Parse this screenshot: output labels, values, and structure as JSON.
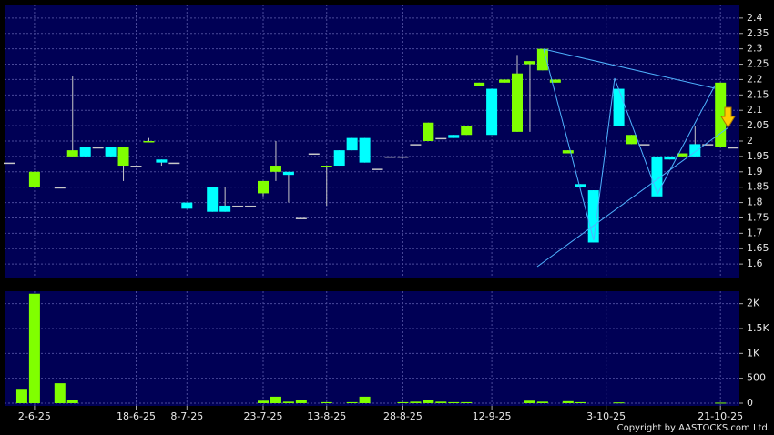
{
  "chart_data": [
    {
      "type": "candlestick",
      "up_color": "#00ffff",
      "down_color": "#80ff00",
      "open": [
        1.93,
        null,
        1.9,
        null,
        1.85,
        1.97,
        1.95,
        1.98,
        1.95,
        1.98,
        1.92,
        2.0,
        1.93,
        1.93,
        1.78,
        null,
        1.77,
        1.77,
        1.79,
        1.79,
        1.87,
        1.92,
        1.89,
        1.75,
        1.96,
        1.92,
        1.92,
        1.97,
        1.93,
        1.91,
        1.95,
        1.95,
        1.99,
        2.06,
        2.01,
        2.01,
        2.05,
        2.19,
        2.02,
        2.2,
        2.22,
        2.26,
        2.3,
        2.2,
        1.97,
        1.85,
        1.67,
        null,
        2.05,
        2.02,
        1.99,
        1.82,
        1.94,
        1.96,
        1.95,
        1.99,
        2.19,
        1.98
      ],
      "high": [
        1.93,
        null,
        1.9,
        null,
        1.85,
        2.21,
        1.98,
        1.98,
        1.98,
        1.98,
        1.92,
        2.01,
        1.94,
        1.93,
        1.8,
        null,
        1.85,
        1.85,
        1.79,
        1.79,
        1.87,
        2.0,
        1.9,
        1.75,
        1.96,
        1.92,
        1.97,
        2.01,
        2.01,
        1.91,
        1.95,
        1.95,
        1.99,
        2.06,
        2.01,
        2.02,
        2.05,
        2.19,
        2.17,
        2.2,
        2.28,
        2.26,
        2.3,
        2.2,
        1.97,
        1.86,
        1.84,
        null,
        2.17,
        2.02,
        1.99,
        1.95,
        1.95,
        1.96,
        2.05,
        1.99,
        2.19,
        1.98
      ],
      "low": [
        1.93,
        null,
        1.85,
        null,
        1.85,
        1.95,
        1.95,
        1.98,
        1.95,
        1.87,
        1.92,
        2.0,
        1.92,
        1.93,
        1.78,
        null,
        1.77,
        1.77,
        1.79,
        1.79,
        1.82,
        1.87,
        1.8,
        1.75,
        1.96,
        1.79,
        1.92,
        1.97,
        1.93,
        1.91,
        1.95,
        1.95,
        1.99,
        2.0,
        2.01,
        2.01,
        2.02,
        2.18,
        2.02,
        2.19,
        2.03,
        2.03,
        2.23,
        2.19,
        1.96,
        1.85,
        1.67,
        null,
        2.05,
        1.99,
        1.99,
        1.82,
        1.94,
        1.95,
        1.95,
        1.99,
        1.98,
        1.98
      ],
      "close": [
        1.93,
        null,
        1.85,
        null,
        1.85,
        1.95,
        1.98,
        1.98,
        1.98,
        1.92,
        1.92,
        2.0,
        1.94,
        1.93,
        1.8,
        null,
        1.85,
        1.79,
        1.79,
        1.79,
        1.83,
        1.9,
        1.9,
        1.75,
        1.96,
        1.92,
        1.97,
        2.01,
        2.01,
        1.91,
        1.95,
        1.95,
        1.99,
        2.0,
        2.01,
        2.02,
        2.02,
        2.18,
        2.17,
        2.19,
        2.03,
        2.25,
        2.23,
        2.19,
        1.96,
        1.86,
        1.84,
        null,
        2.17,
        1.99,
        1.99,
        1.95,
        1.95,
        1.95,
        1.99,
        1.99,
        1.98,
        1.98
      ],
      "ylim": [
        1.556,
        2.444
      ],
      "yticks": [
        1.6,
        1.65,
        1.7,
        1.75,
        1.8,
        1.85,
        1.9,
        1.95,
        2,
        2.05,
        2.1,
        2.15,
        2.2,
        2.25,
        2.3,
        2.35,
        2.4
      ],
      "grid": true
    },
    {
      "type": "bar",
      "color": "#80ff00",
      "categories": [
        null,
        null,
        "2-6-25",
        null,
        null,
        null,
        null,
        null,
        null,
        null,
        "18-6-25",
        null,
        null,
        null,
        "8-7-25",
        null,
        null,
        null,
        null,
        null,
        "23-7-25",
        null,
        null,
        null,
        null,
        "13-8-25",
        null,
        null,
        null,
        null,
        null,
        "28-8-25",
        null,
        null,
        null,
        null,
        null,
        null,
        "12-9-25",
        null,
        null,
        null,
        null,
        null,
        null,
        null,
        null,
        "3-10-25",
        null,
        null,
        null,
        null,
        null,
        null,
        null,
        null,
        "21-10-25",
        null
      ],
      "values": [
        null,
        270,
        2200,
        null,
        400,
        60,
        null,
        null,
        null,
        null,
        null,
        null,
        null,
        null,
        null,
        null,
        null,
        null,
        null,
        null,
        50,
        130,
        30,
        60,
        null,
        20,
        null,
        20,
        130,
        null,
        null,
        20,
        30,
        70,
        30,
        20,
        20,
        null,
        null,
        null,
        null,
        50,
        30,
        null,
        40,
        20,
        null,
        null,
        15,
        null,
        null,
        null,
        null,
        null,
        null,
        null,
        10,
        null
      ],
      "ylim": [
        0,
        2250
      ],
      "yticks": [
        0,
        500,
        {
          "value": 1000,
          "label": "1K"
        },
        {
          "value": 1500,
          "label": "1.5K"
        },
        {
          "value": 2000,
          "label": "2K"
        }
      ],
      "grid": true
    }
  ],
  "copyright": "Copyright by AASTOCKS.com Ltd."
}
